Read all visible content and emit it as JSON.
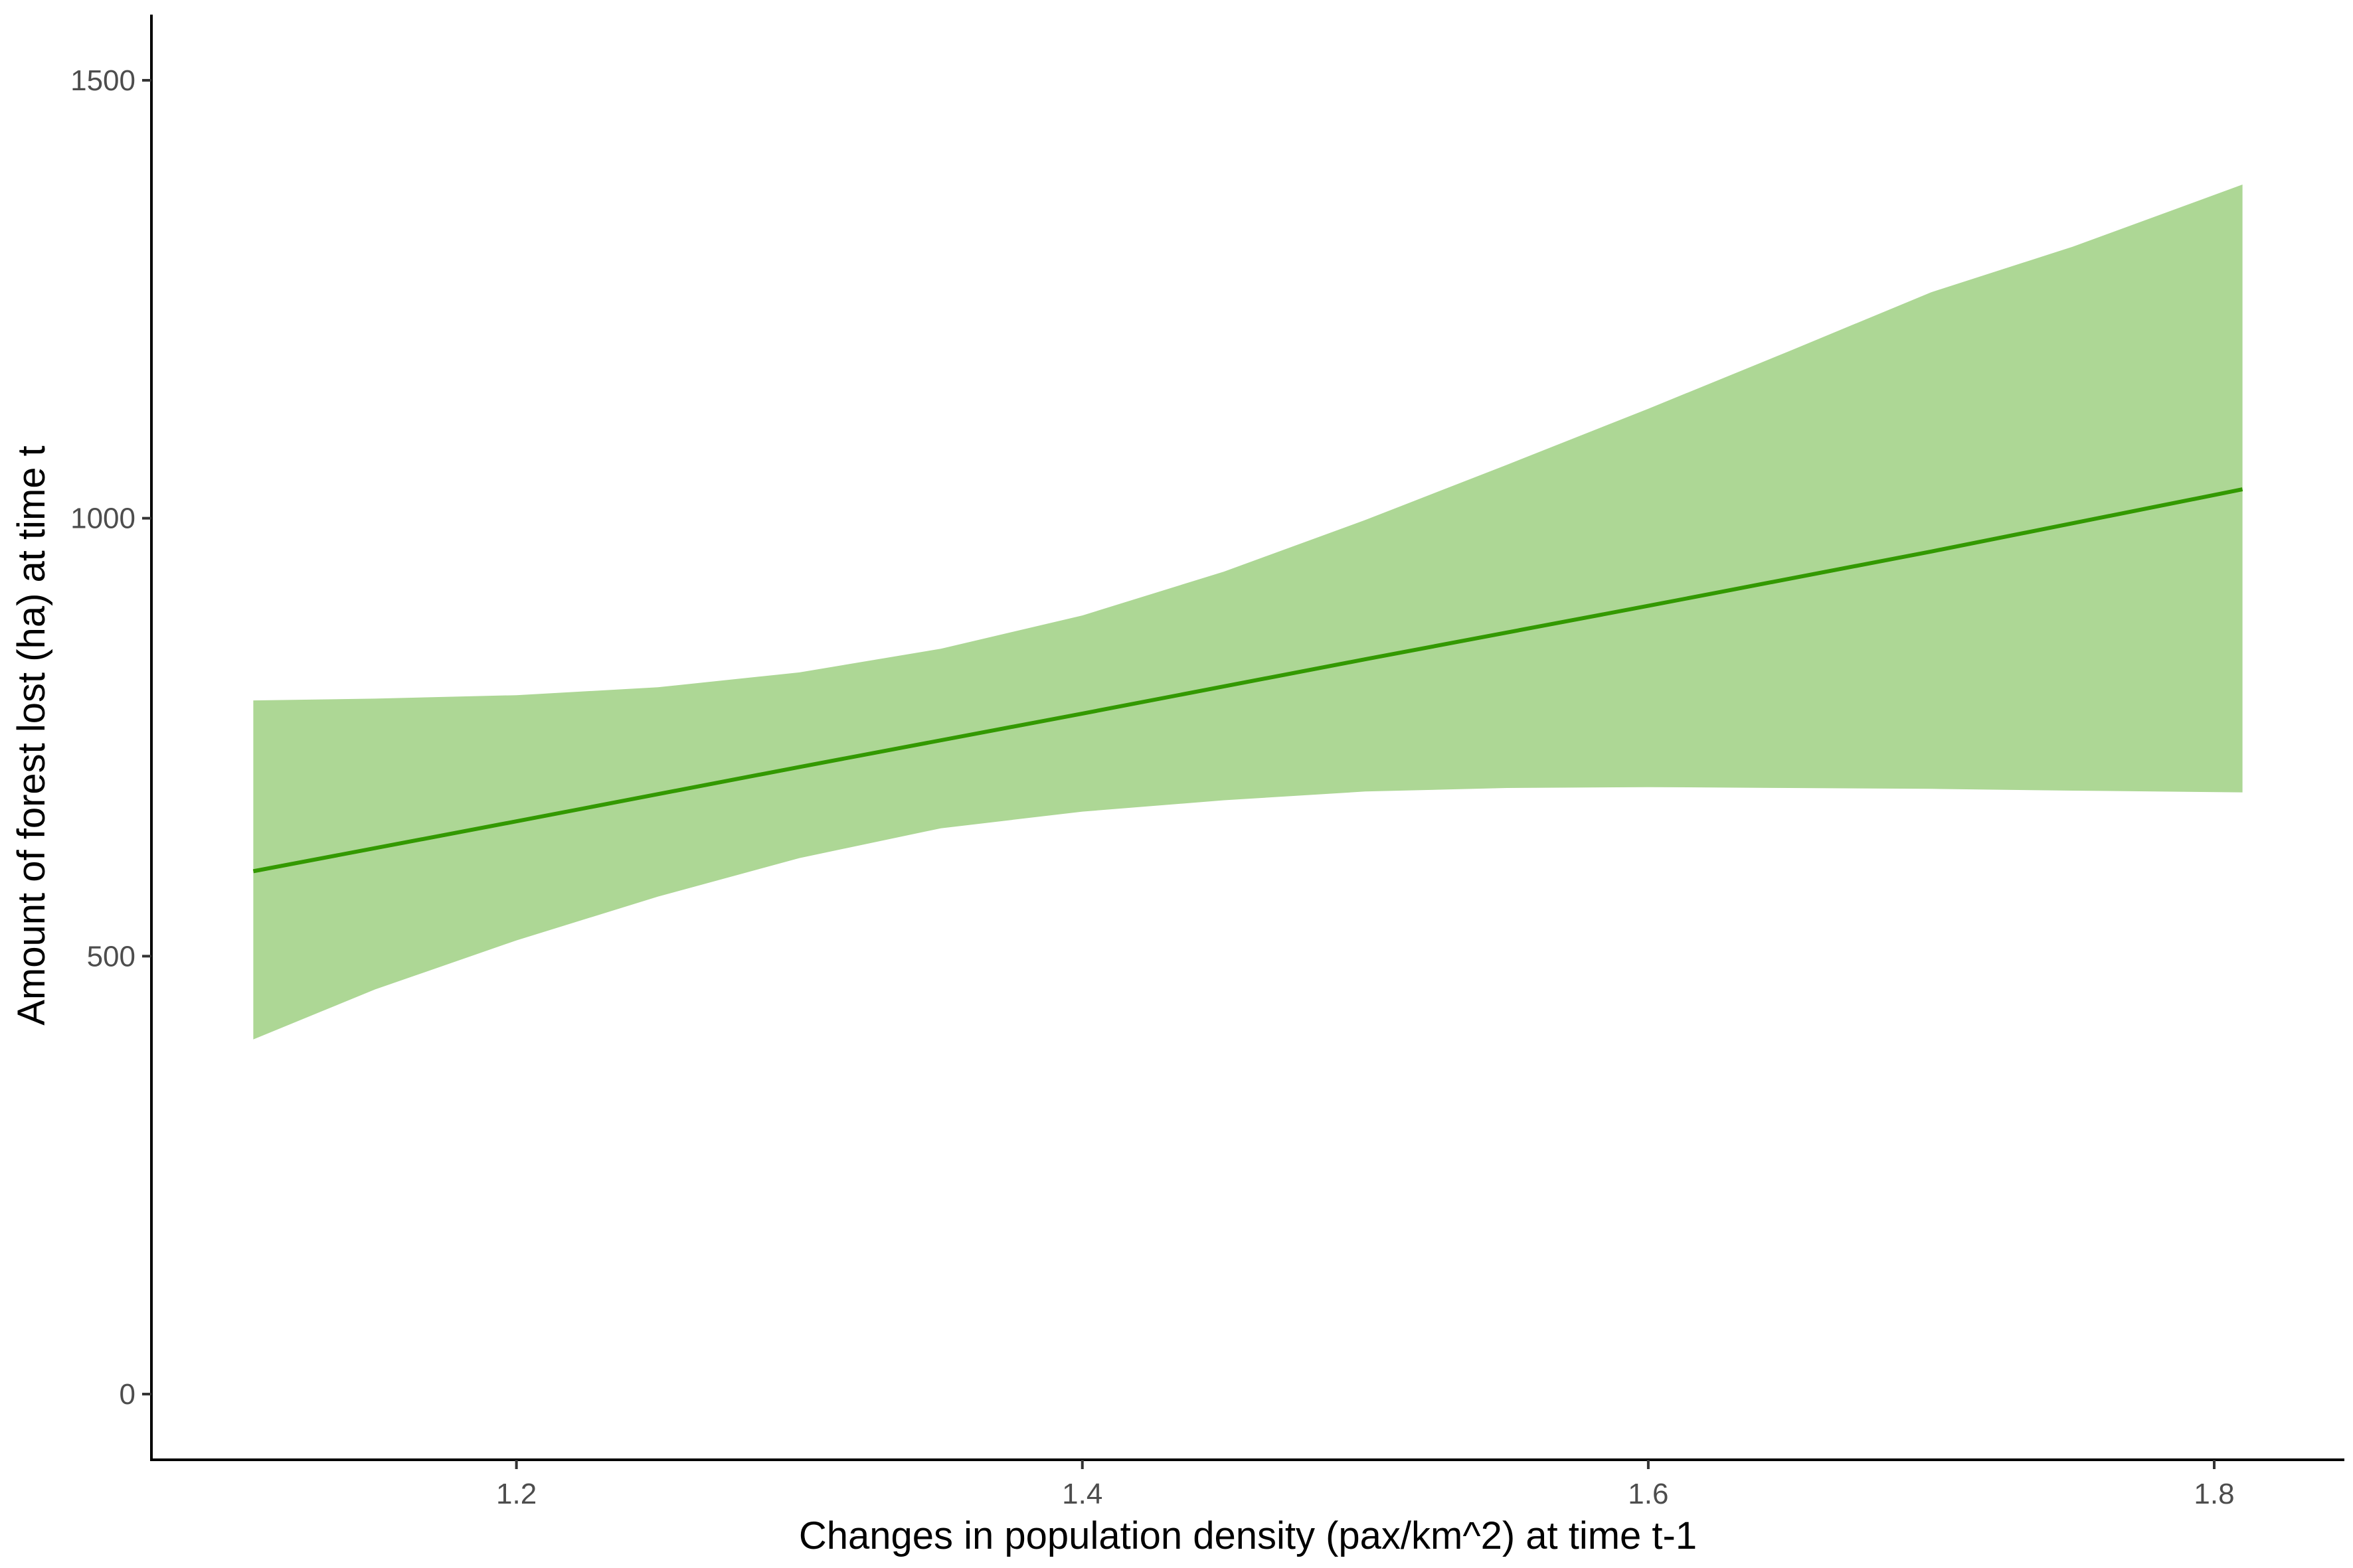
{
  "chart_data": {
    "type": "line",
    "title": "",
    "xlabel": "Changes in population density (pax/km^2) at time t-1",
    "ylabel": "Amount of forest lost (ha) at time t",
    "xlim": [
      1.071,
      1.846
    ],
    "ylim": [
      -75,
      1575
    ],
    "xticks": [
      1.2,
      1.4,
      1.6,
      1.8
    ],
    "xtick_labels": [
      "1.2",
      "1.4",
      "1.6",
      "1.8"
    ],
    "yticks": [
      0,
      500,
      1000,
      1500
    ],
    "ytick_labels": [
      "0",
      "500",
      "1000",
      "1500"
    ],
    "grid": false,
    "legend": "none",
    "series": [
      {
        "type": "line",
        "color": "#339900",
        "x": [
          1.107,
          1.2,
          1.3,
          1.4,
          1.5,
          1.6,
          1.7,
          1.81
        ],
        "y": [
          597,
          654,
          716,
          777,
          839,
          900,
          962,
          1033
        ]
      },
      {
        "type": "confidence-band",
        "color": "#add795",
        "x": [
          1.107,
          1.15,
          1.2,
          1.25,
          1.3,
          1.35,
          1.4,
          1.45,
          1.5,
          1.55,
          1.6,
          1.65,
          1.7,
          1.75,
          1.81
        ],
        "lower": [
          405,
          462,
          518,
          568,
          612,
          646,
          665,
          678,
          688,
          692,
          693,
          692,
          691,
          689,
          687
        ],
        "upper": [
          792,
          794,
          798,
          807,
          824,
          851,
          889,
          939,
          998,
          1061,
          1125,
          1191,
          1258,
          1310,
          1381
        ]
      }
    ]
  }
}
